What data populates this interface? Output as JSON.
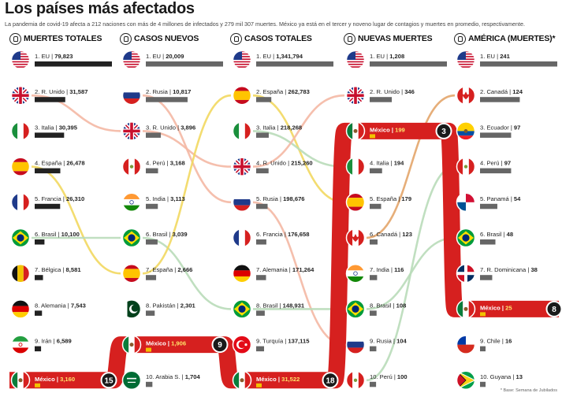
{
  "title": "Los países más afectados",
  "subtitle": "La pandemia de covid-19 afecta a 212 naciones con más de 4 millones de infectados y 279 mil 307 muertes. México ya está en el tercer y noveno lugar de contagios y muertes en promedio, respectivamente.",
  "footer": "* Base: Semana de Jubilados",
  "colors": {
    "red": "#d6201f",
    "bar": "#666666",
    "bar_dark": "#222222",
    "mexico_marker": "#f2c200"
  },
  "chart_data": {
    "type": "table",
    "columns": [
      {
        "key": "muertes_totales",
        "title": "MUERTES TOTALES",
        "icon": "skull-icon",
        "rows": [
          {
            "rank": 1,
            "country": "EU",
            "value": "79,823",
            "num": 79823
          },
          {
            "rank": 2,
            "country": "R. Unido",
            "value": "31,587",
            "num": 31587
          },
          {
            "rank": 3,
            "country": "Italia",
            "value": "30,395",
            "num": 30395
          },
          {
            "rank": 4,
            "country": "España",
            "value": "26,478",
            "num": 26478
          },
          {
            "rank": 5,
            "country": "Francia",
            "value": "26,310",
            "num": 26310
          },
          {
            "rank": 6,
            "country": "Brasil",
            "value": "10,100",
            "num": 10100
          },
          {
            "rank": 7,
            "country": "Bélgica",
            "value": "8,581",
            "num": 8581
          },
          {
            "rank": 8,
            "country": "Alemania",
            "value": "7,543",
            "num": 7543
          },
          {
            "rank": 9,
            "country": "Irán",
            "value": "6,589",
            "num": 6589
          }
        ],
        "mexico": {
          "country": "México",
          "value": "3,160",
          "num": 3160,
          "rank": "15"
        }
      },
      {
        "key": "casos_nuevos",
        "title": "CASOS NUEVOS",
        "icon": "virus-icon",
        "rows": [
          {
            "rank": 1,
            "country": "EU",
            "value": "20,009",
            "num": 20009
          },
          {
            "rank": 2,
            "country": "Rusia",
            "value": "10,817",
            "num": 10817
          },
          {
            "rank": 3,
            "country": "R. Unido",
            "value": "3,896",
            "num": 3896
          },
          {
            "rank": 4,
            "country": "Perú",
            "value": "3,168",
            "num": 3168
          },
          {
            "rank": 5,
            "country": "India",
            "value": "3,113",
            "num": 3113
          },
          {
            "rank": 6,
            "country": "Brasil",
            "value": "3,039",
            "num": 3039
          },
          {
            "rank": 7,
            "country": "España",
            "value": "2,666",
            "num": 2666
          },
          {
            "rank": 8,
            "country": "Pakistán",
            "value": "2,301",
            "num": 2301
          },
          {
            "rank": 9,
            "country": "México",
            "value": "1,906",
            "num": 1906,
            "rank_label": "9"
          },
          {
            "rank": 10,
            "country": "Arabia S.",
            "value": "1,704",
            "num": 1704
          }
        ]
      },
      {
        "key": "casos_totales",
        "title": "CASOS TOTALES",
        "icon": "virus-icon",
        "rows": [
          {
            "rank": 1,
            "country": "EU",
            "value": "1,341,794",
            "num": 1341794
          },
          {
            "rank": 2,
            "country": "España",
            "value": "262,783",
            "num": 262783
          },
          {
            "rank": 3,
            "country": "Italia",
            "value": "218,268",
            "num": 218268
          },
          {
            "rank": 4,
            "country": "R. Unido",
            "value": "215,260",
            "num": 215260
          },
          {
            "rank": 5,
            "country": "Rusia",
            "value": "198,676",
            "num": 198676
          },
          {
            "rank": 6,
            "country": "Francia",
            "value": "176,658",
            "num": 176658
          },
          {
            "rank": 7,
            "country": "Alemania",
            "value": "171,264",
            "num": 171264
          },
          {
            "rank": 8,
            "country": "Brasil",
            "value": "148,931",
            "num": 148931
          },
          {
            "rank": 9,
            "country": "Turquía",
            "value": "137,115",
            "num": 137115
          }
        ],
        "mexico": {
          "country": "México",
          "value": "31,522",
          "num": 31522,
          "rank": "18"
        }
      },
      {
        "key": "nuevas_muertes",
        "title": "NUEVAS MUERTES",
        "icon": "skull-icon",
        "rows": [
          {
            "rank": 1,
            "country": "EU",
            "value": "1,208",
            "num": 1208
          },
          {
            "rank": 2,
            "country": "R. Unido",
            "value": "346",
            "num": 346
          },
          {
            "rank": 3,
            "country": "México",
            "value": "199",
            "num": 199,
            "rank_label": "3"
          },
          {
            "rank": 4,
            "country": "Italia",
            "value": "194",
            "num": 194
          },
          {
            "rank": 5,
            "country": "España",
            "value": "179",
            "num": 179
          },
          {
            "rank": 6,
            "country": "Canadá",
            "value": "123",
            "num": 123
          },
          {
            "rank": 7,
            "country": "India",
            "value": "116",
            "num": 116
          },
          {
            "rank": 8,
            "country": "Brasil",
            "value": "108",
            "num": 108
          },
          {
            "rank": 9,
            "country": "Rusia",
            "value": "104",
            "num": 104
          },
          {
            "rank": 10,
            "country": "Perú",
            "value": "100",
            "num": 100
          }
        ]
      },
      {
        "key": "america_muertes",
        "title": "AMÉRICA (MUERTES)*",
        "icon": "skull-icon",
        "rows": [
          {
            "rank": 1,
            "country": "EU",
            "value": "241",
            "num": 241
          },
          {
            "rank": 2,
            "country": "Canadá",
            "value": "124",
            "num": 124
          },
          {
            "rank": 3,
            "country": "Ecuador",
            "value": "97",
            "num": 97
          },
          {
            "rank": 4,
            "country": "Perú",
            "value": "97",
            "num": 97
          },
          {
            "rank": 5,
            "country": "Panamá",
            "value": "54",
            "num": 54
          },
          {
            "rank": 6,
            "country": "Brasil",
            "value": "48",
            "num": 48
          },
          {
            "rank": 7,
            "country": "R. Dominicana",
            "value": "38",
            "num": 38
          },
          {
            "rank": 8,
            "country": "México",
            "value": "25",
            "num": 25,
            "rank_label": "8"
          },
          {
            "rank": 9,
            "country": "Chile",
            "value": "16",
            "num": 16
          },
          {
            "rank": 10,
            "country": "Guyana",
            "value": "13",
            "num": 13
          }
        ]
      }
    ]
  }
}
